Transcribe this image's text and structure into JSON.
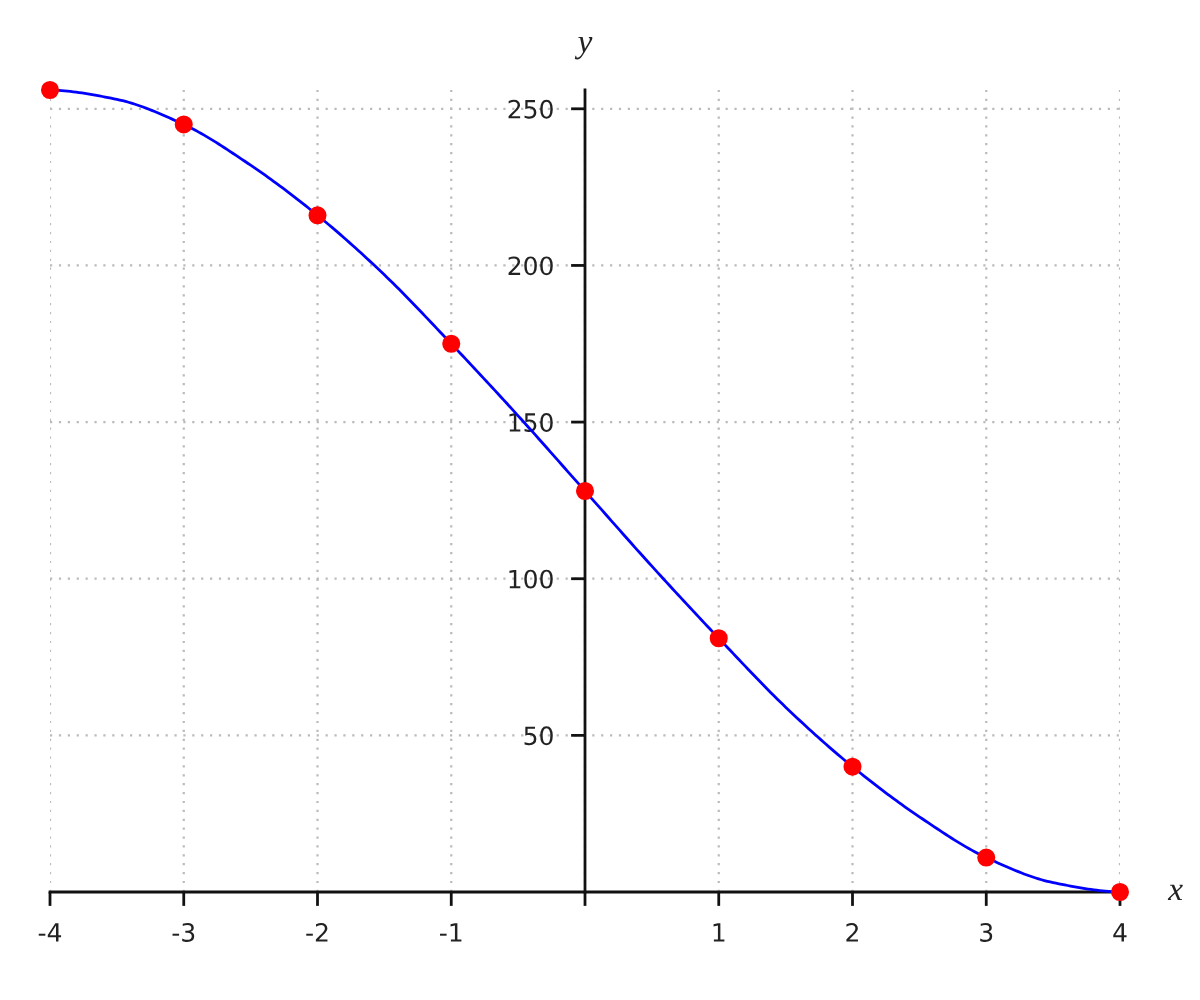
{
  "chart_data": {
    "type": "line",
    "xlabel": "x",
    "ylabel": "y",
    "xlim": [
      -4,
      4
    ],
    "ylim": [
      0,
      256
    ],
    "xticks": [
      -4,
      -3,
      -2,
      -1,
      {
        "value": 0,
        "label": null
      },
      1,
      2,
      3,
      4
    ],
    "yticks": [
      50,
      100,
      150,
      200,
      250
    ],
    "grid": true,
    "series": [
      {
        "color": "#0000ff",
        "marker": "none",
        "line_style": "solid",
        "x": [
          -4,
          -3.5,
          -3,
          -2.5,
          -2,
          -1.5,
          -1,
          -0.5,
          0,
          0.5,
          1,
          1.5,
          2,
          2.5,
          3,
          3.5,
          4
        ],
        "values": [
          256,
          253,
          245,
          232,
          216,
          197,
          175,
          152,
          128,
          104,
          81,
          59,
          40,
          24,
          11,
          3,
          0
        ]
      },
      {
        "type": "scatter",
        "color": "#ff0000",
        "marker": "circle",
        "x": [
          -4,
          -3,
          -2,
          -1,
          0,
          1,
          2,
          3,
          4
        ],
        "values": [
          256,
          245,
          216,
          175,
          128,
          81,
          40,
          11,
          0
        ]
      }
    ]
  }
}
